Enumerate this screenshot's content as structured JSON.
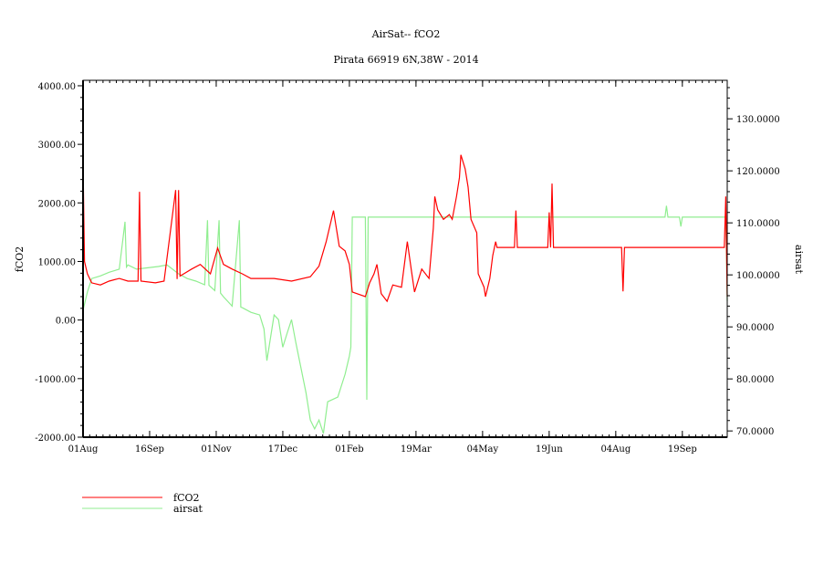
{
  "chart_data": {
    "type": "line",
    "title": "AirSat-- fCO2",
    "subtitle": "Pirata 66919 6N,38W - 2014",
    "xlabel": "",
    "ylabel": "fCO2",
    "y2label": "airsat",
    "xlim": [
      "2013-08-01",
      "2014-10-20"
    ],
    "ylim": [
      -2000,
      4093
    ],
    "y2lim": [
      68.8,
      137.4
    ],
    "x_ticks": [
      {
        "date": "2013-08-01",
        "label": "01Aug"
      },
      {
        "date": "2013-09-16",
        "label": "16Sep"
      },
      {
        "date": "2013-11-01",
        "label": "01Nov"
      },
      {
        "date": "2013-12-17",
        "label": "17Dec"
      },
      {
        "date": "2014-02-01",
        "label": "01Feb"
      },
      {
        "date": "2014-03-19",
        "label": "19Mar"
      },
      {
        "date": "2014-05-04",
        "label": "04May"
      },
      {
        "date": "2014-06-19",
        "label": "19Jun"
      },
      {
        "date": "2014-08-04",
        "label": "04Aug"
      },
      {
        "date": "2014-09-19",
        "label": "19Sep"
      }
    ],
    "y_ticks": [
      {
        "value": 4000,
        "label": "4000.00"
      },
      {
        "value": 3000,
        "label": "3000.00"
      },
      {
        "value": 2000,
        "label": "2000.00"
      },
      {
        "value": 1000,
        "label": "1000.00"
      },
      {
        "value": 0,
        "label": "0.00"
      },
      {
        "value": -1000,
        "label": "-1000.00"
      },
      {
        "value": -2000,
        "label": "-2000.00"
      }
    ],
    "y2_ticks": [
      {
        "value": 130,
        "label": "130.0000"
      },
      {
        "value": 120,
        "label": "120.0000"
      },
      {
        "value": 110,
        "label": "110.0000"
      },
      {
        "value": 100,
        "label": "100.0000"
      },
      {
        "value": 90,
        "label": "90.0000"
      },
      {
        "value": 80,
        "label": "80.0000"
      },
      {
        "value": 70,
        "label": "70.0000"
      }
    ],
    "grid": false,
    "legend_position": "bottom-left",
    "series": [
      {
        "name": "fCO2",
        "axis": "left",
        "color": "#ff0000",
        "points": [
          [
            "2013-08-01",
            2700
          ],
          [
            "2013-08-02",
            1000
          ],
          [
            "2013-08-04",
            790
          ],
          [
            "2013-08-07",
            635
          ],
          [
            "2013-08-13",
            600
          ],
          [
            "2013-08-19",
            665
          ],
          [
            "2013-08-26",
            710
          ],
          [
            "2013-09-01",
            665
          ],
          [
            "2013-09-08",
            665
          ],
          [
            "2013-09-09",
            2190
          ],
          [
            "2013-09-10",
            665
          ],
          [
            "2013-09-20",
            635
          ],
          [
            "2013-09-26",
            665
          ],
          [
            "2013-10-04",
            2220
          ],
          [
            "2013-10-05",
            700
          ],
          [
            "2013-10-06",
            2220
          ],
          [
            "2013-10-07",
            750
          ],
          [
            "2013-10-15",
            870
          ],
          [
            "2013-10-21",
            950
          ],
          [
            "2013-10-28",
            790
          ],
          [
            "2013-11-02",
            1230
          ],
          [
            "2013-11-06",
            950
          ],
          [
            "2013-11-12",
            870
          ],
          [
            "2013-11-19",
            790
          ],
          [
            "2013-11-25",
            710
          ],
          [
            "2013-12-11",
            710
          ],
          [
            "2013-12-23",
            665
          ],
          [
            "2014-01-05",
            740
          ],
          [
            "2014-01-11",
            920
          ],
          [
            "2014-01-16",
            1340
          ],
          [
            "2014-01-21",
            1870
          ],
          [
            "2014-01-25",
            1260
          ],
          [
            "2014-01-29",
            1180
          ],
          [
            "2014-02-01",
            950
          ],
          [
            "2014-02-03",
            480
          ],
          [
            "2014-02-12",
            400
          ],
          [
            "2014-02-15",
            635
          ],
          [
            "2014-02-18",
            790
          ],
          [
            "2014-02-20",
            950
          ],
          [
            "2014-02-23",
            450
          ],
          [
            "2014-02-27",
            320
          ],
          [
            "2014-03-03",
            600
          ],
          [
            "2014-03-09",
            560
          ],
          [
            "2014-03-13",
            1340
          ],
          [
            "2014-03-16",
            820
          ],
          [
            "2014-03-18",
            480
          ],
          [
            "2014-03-23",
            870
          ],
          [
            "2014-03-28",
            710
          ],
          [
            "2014-03-31",
            1570
          ],
          [
            "2014-04-01",
            2110
          ],
          [
            "2014-04-03",
            1880
          ],
          [
            "2014-04-07",
            1720
          ],
          [
            "2014-04-11",
            1800
          ],
          [
            "2014-04-13",
            1720
          ],
          [
            "2014-04-16",
            2110
          ],
          [
            "2014-04-18",
            2430
          ],
          [
            "2014-04-19",
            2820
          ],
          [
            "2014-04-22",
            2580
          ],
          [
            "2014-04-24",
            2270
          ],
          [
            "2014-04-26",
            1720
          ],
          [
            "2014-04-30",
            1490
          ],
          [
            "2014-05-01",
            790
          ],
          [
            "2014-05-05",
            560
          ],
          [
            "2014-05-06",
            400
          ],
          [
            "2014-05-09",
            710
          ],
          [
            "2014-05-11",
            1100
          ],
          [
            "2014-05-13",
            1340
          ],
          [
            "2014-05-14",
            1240
          ],
          [
            "2014-05-26",
            1240
          ],
          [
            "2014-05-27",
            1870
          ],
          [
            "2014-05-28",
            1240
          ],
          [
            "2014-06-18",
            1240
          ],
          [
            "2014-06-19",
            1840
          ],
          [
            "2014-06-20",
            1240
          ],
          [
            "2014-06-21",
            2330
          ],
          [
            "2014-06-22",
            1240
          ],
          [
            "2014-08-08",
            1240
          ],
          [
            "2014-08-09",
            490
          ],
          [
            "2014-08-10",
            1240
          ],
          [
            "2014-10-18",
            1240
          ],
          [
            "2014-10-19",
            2110
          ],
          [
            "2014-10-20",
            400
          ]
        ]
      },
      {
        "name": "airsat",
        "axis": "right",
        "color": "#90ee90",
        "points": [
          [
            "2013-08-01",
            93.2
          ],
          [
            "2013-08-04",
            96.7
          ],
          [
            "2013-08-07",
            99.3
          ],
          [
            "2013-08-13",
            99.8
          ],
          [
            "2013-08-19",
            100.5
          ],
          [
            "2013-08-26",
            101.1
          ],
          [
            "2013-08-30",
            110.2
          ],
          [
            "2013-08-31",
            101.5
          ],
          [
            "2013-09-01",
            101.9
          ],
          [
            "2013-09-07",
            101.1
          ],
          [
            "2013-09-22",
            101.6
          ],
          [
            "2013-09-28",
            101.9
          ],
          [
            "2013-10-06",
            100.2
          ],
          [
            "2013-10-12",
            99.3
          ],
          [
            "2013-10-18",
            98.8
          ],
          [
            "2013-10-24",
            98.1
          ],
          [
            "2013-10-26",
            110.5
          ],
          [
            "2013-10-27",
            98.0
          ],
          [
            "2013-10-31",
            97.0
          ],
          [
            "2013-11-03",
            110.5
          ],
          [
            "2013-11-04",
            96.5
          ],
          [
            "2013-11-06",
            95.8
          ],
          [
            "2013-11-12",
            94.0
          ],
          [
            "2013-11-17",
            110.5
          ],
          [
            "2013-11-18",
            93.8
          ],
          [
            "2013-11-19",
            93.7
          ],
          [
            "2013-11-25",
            92.8
          ],
          [
            "2013-12-01",
            92.3
          ],
          [
            "2013-12-04",
            89.6
          ],
          [
            "2013-12-06",
            83.5
          ],
          [
            "2013-12-11",
            92.3
          ],
          [
            "2013-12-14",
            91.4
          ],
          [
            "2013-12-17",
            86.1
          ],
          [
            "2013-12-20",
            88.8
          ],
          [
            "2013-12-23",
            91.4
          ],
          [
            "2013-12-26",
            87.0
          ],
          [
            "2014-01-02",
            77.4
          ],
          [
            "2014-01-05",
            72.1
          ],
          [
            "2014-01-08",
            70.4
          ],
          [
            "2014-01-11",
            72.1
          ],
          [
            "2014-01-14",
            69.5
          ],
          [
            "2014-01-17",
            75.6
          ],
          [
            "2014-01-24",
            76.5
          ],
          [
            "2014-01-29",
            80.9
          ],
          [
            "2014-02-01",
            84.4
          ],
          [
            "2014-02-02",
            86.1
          ],
          [
            "2014-02-03",
            111.1
          ],
          [
            "2014-02-12",
            111.1
          ],
          [
            "2014-02-13",
            76.0
          ],
          [
            "2014-02-14",
            111.1
          ],
          [
            "2014-09-07",
            111.1
          ],
          [
            "2014-09-08",
            113.3
          ],
          [
            "2014-09-09",
            111.1
          ],
          [
            "2014-09-17",
            111.1
          ],
          [
            "2014-09-18",
            109.3
          ],
          [
            "2014-09-19",
            111.1
          ],
          [
            "2014-10-19",
            111.1
          ],
          [
            "2014-10-20",
            95.0
          ]
        ]
      }
    ]
  }
}
